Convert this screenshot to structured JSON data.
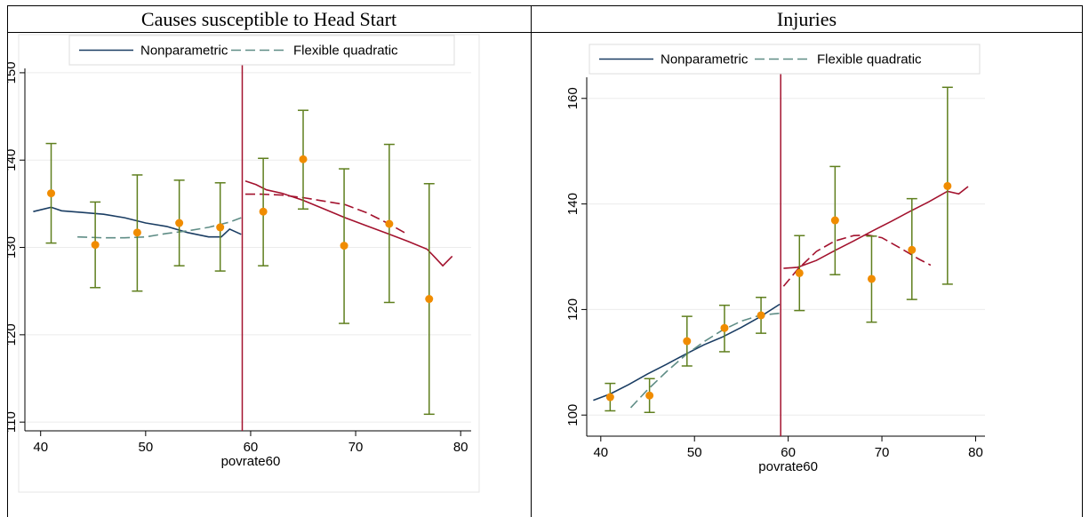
{
  "colors": {
    "nonparametric_left": "#1a3d63",
    "flexible_left": "#5f8d86",
    "right_side": "#a3122e",
    "cutoff": "#a3122e",
    "points": "#f08c00",
    "error_bars": "#5f7f1e"
  },
  "chart_data": [
    {
      "type": "line",
      "title": "Causes susceptible to Head Start",
      "xlabel": "povrate60",
      "ylabel": "",
      "xlim": [
        38.5,
        81
      ],
      "ylim": [
        109,
        150.5
      ],
      "xticks": [
        40,
        50,
        60,
        70,
        80
      ],
      "yticks": [
        110,
        120,
        130,
        140,
        150
      ],
      "cutoff": 59.2,
      "legend": [
        "Nonparametric",
        "Flexible quadratic"
      ],
      "legend_position": "top",
      "series": [
        {
          "name": "Nonparametric",
          "side": "left",
          "style": "solid",
          "x": [
            39.3,
            41,
            42,
            44,
            46,
            48,
            50,
            52,
            54,
            56,
            57.2,
            58,
            59.1
          ],
          "y": [
            134.1,
            134.6,
            134.2,
            134.0,
            133.8,
            133.4,
            132.8,
            132.4,
            131.7,
            131.2,
            131.2,
            132.1,
            131.5
          ]
        },
        {
          "name": "Flexible quadratic",
          "side": "left",
          "style": "dashed",
          "x": [
            43.5,
            46,
            48,
            50,
            52,
            54,
            56,
            58,
            59.1
          ],
          "y": [
            131.2,
            131.1,
            131.1,
            131.2,
            131.6,
            131.9,
            132.3,
            132.9,
            133.4
          ]
        },
        {
          "name": "Nonparametric",
          "side": "right",
          "style": "solid",
          "x": [
            59.5,
            60.5,
            61.5,
            63,
            65,
            67,
            69,
            71,
            73,
            75,
            76.8,
            77.6,
            78.3,
            79.2
          ],
          "y": [
            137.6,
            137.2,
            136.6,
            136.2,
            135.4,
            134.4,
            133.4,
            132.5,
            131.6,
            130.7,
            129.8,
            128.8,
            127.9,
            129.0
          ]
        },
        {
          "name": "Flexible quadratic",
          "side": "right",
          "style": "dashed",
          "x": [
            59.5,
            61,
            63,
            65,
            67,
            69,
            71,
            73,
            74.8
          ],
          "y": [
            136.1,
            136.1,
            136.0,
            135.7,
            135.3,
            134.9,
            134.0,
            132.8,
            131.6
          ]
        }
      ],
      "points": [
        {
          "x": 41.0,
          "y": 136.2,
          "lo": 130.5,
          "hi": 141.9
        },
        {
          "x": 45.2,
          "y": 130.3,
          "lo": 125.4,
          "hi": 135.2
        },
        {
          "x": 49.2,
          "y": 131.7,
          "lo": 125.0,
          "hi": 138.3
        },
        {
          "x": 53.2,
          "y": 132.8,
          "lo": 127.9,
          "hi": 137.7
        },
        {
          "x": 57.1,
          "y": 132.3,
          "lo": 127.3,
          "hi": 137.4
        },
        {
          "x": 61.2,
          "y": 134.1,
          "lo": 127.9,
          "hi": 140.2
        },
        {
          "x": 65.0,
          "y": 140.1,
          "lo": 134.4,
          "hi": 145.7
        },
        {
          "x": 68.9,
          "y": 130.2,
          "lo": 121.3,
          "hi": 139.0
        },
        {
          "x": 73.2,
          "y": 132.7,
          "lo": 123.7,
          "hi": 141.8
        },
        {
          "x": 77.0,
          "y": 124.1,
          "lo": 110.9,
          "hi": 137.3
        }
      ]
    },
    {
      "type": "line",
      "title": "Injuries",
      "xlabel": "povrate60",
      "ylabel": "",
      "xlim": [
        38.5,
        81
      ],
      "ylim": [
        96,
        164
      ],
      "xticks": [
        40,
        50,
        60,
        70,
        80
      ],
      "yticks": [
        100,
        120,
        140,
        160
      ],
      "cutoff": 59.2,
      "legend": [
        "Nonparametric",
        "Flexible quadratic"
      ],
      "legend_position": "top",
      "series": [
        {
          "name": "Nonparametric",
          "side": "left",
          "style": "solid",
          "x": [
            39.2,
            41,
            43,
            45,
            47,
            49,
            51,
            53,
            55,
            57,
            59.1
          ],
          "y": [
            102.8,
            104.0,
            105.8,
            107.8,
            109.6,
            111.5,
            113.3,
            114.8,
            116.6,
            118.6,
            121.0
          ]
        },
        {
          "name": "Flexible quadratic",
          "side": "left",
          "style": "dashed",
          "x": [
            43.2,
            45,
            47,
            49,
            51,
            53,
            55,
            57,
            59.1
          ],
          "y": [
            101.4,
            104.8,
            108.2,
            111.3,
            113.9,
            116.1,
            117.8,
            118.9,
            119.3
          ]
        },
        {
          "name": "Nonparametric",
          "side": "right",
          "style": "solid",
          "x": [
            59.5,
            61,
            63,
            65,
            67,
            69,
            71,
            73,
            75,
            77,
            78.2,
            79.2
          ],
          "y": [
            127.8,
            128.0,
            129.3,
            131.2,
            133.0,
            134.9,
            136.7,
            138.6,
            140.4,
            142.4,
            141.9,
            143.3
          ]
        },
        {
          "name": "Flexible quadratic",
          "side": "right",
          "style": "dashed",
          "x": [
            59.5,
            61,
            63,
            65,
            67,
            68.5,
            70,
            72,
            74,
            75.2
          ],
          "y": [
            124.4,
            127.6,
            131.0,
            133.0,
            134.0,
            134.1,
            133.6,
            131.6,
            129.5,
            128.4
          ]
        }
      ],
      "points": [
        {
          "x": 41.0,
          "y": 103.4,
          "lo": 100.8,
          "hi": 106.0
        },
        {
          "x": 45.2,
          "y": 103.7,
          "lo": 100.5,
          "hi": 106.9
        },
        {
          "x": 49.2,
          "y": 114.0,
          "lo": 109.3,
          "hi": 118.7
        },
        {
          "x": 53.2,
          "y": 116.5,
          "lo": 112.0,
          "hi": 120.8
        },
        {
          "x": 57.1,
          "y": 118.9,
          "lo": 115.5,
          "hi": 122.3
        },
        {
          "x": 61.2,
          "y": 126.9,
          "lo": 119.8,
          "hi": 134.0
        },
        {
          "x": 65.0,
          "y": 136.9,
          "lo": 126.6,
          "hi": 147.1
        },
        {
          "x": 68.9,
          "y": 125.8,
          "lo": 117.6,
          "hi": 133.9
        },
        {
          "x": 73.2,
          "y": 131.3,
          "lo": 121.9,
          "hi": 141.0
        },
        {
          "x": 77.0,
          "y": 143.4,
          "lo": 124.8,
          "hi": 162.1
        }
      ]
    }
  ]
}
